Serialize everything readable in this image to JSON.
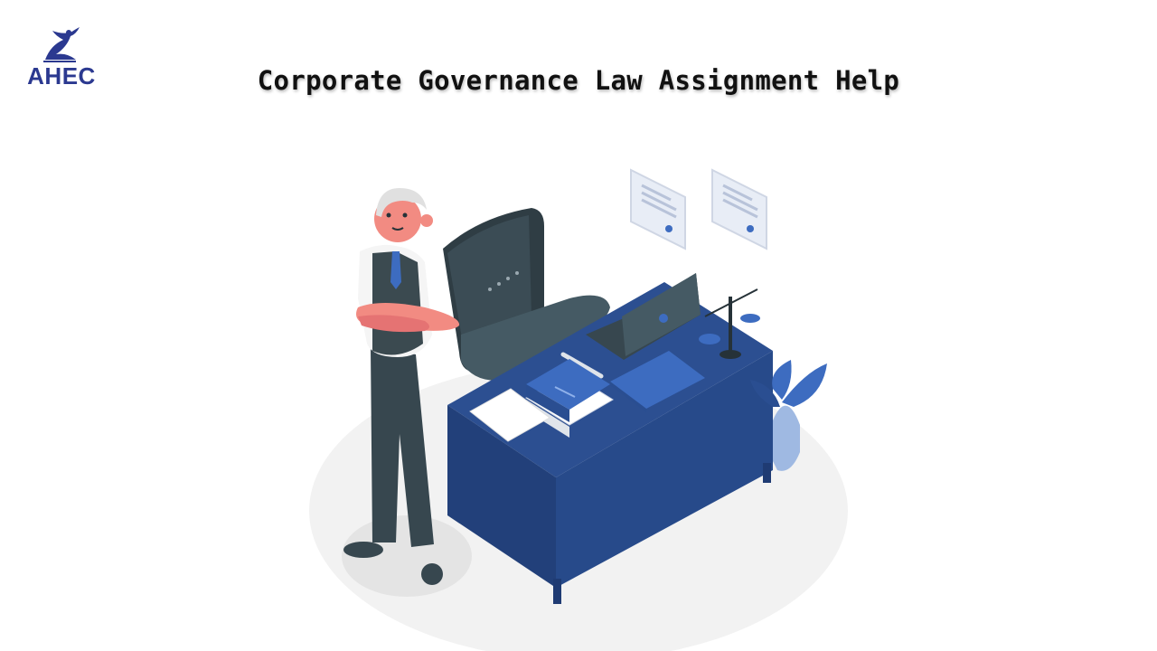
{
  "logo": {
    "text": "AHEC",
    "brand_color": "#2b3990"
  },
  "title": "Corporate Governance Law Assignment Help",
  "illustration": {
    "subject": "lawyer-office-scene",
    "colors": {
      "desk_blue": "#274a8a",
      "desk_dark": "#1f3b73",
      "chair": "#37474f",
      "suit": "#3b4a50",
      "skin": "#f28b82",
      "accent_blue": "#3d6cc0",
      "floor": "#f0f0f0"
    }
  }
}
